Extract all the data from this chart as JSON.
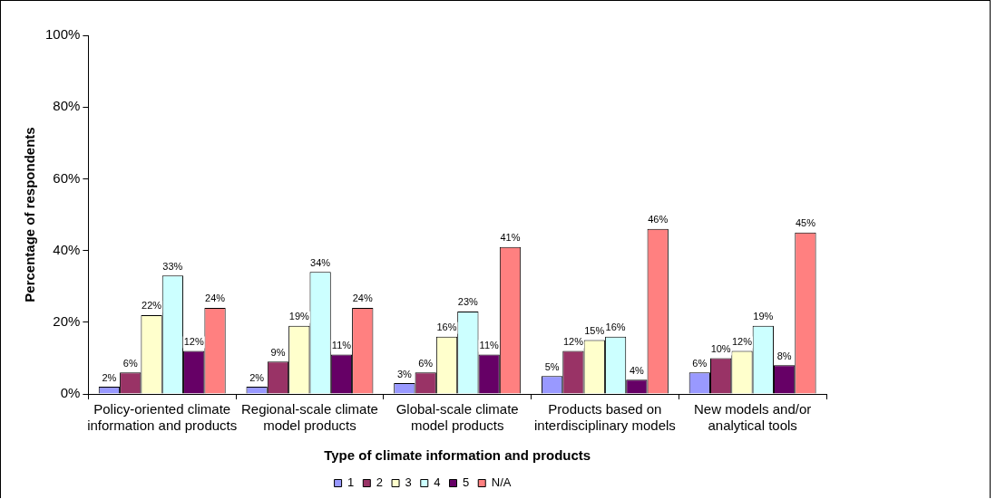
{
  "chart_data": {
    "type": "bar",
    "xlabel": "Type of climate information and products",
    "ylabel": "Percentage of respondents",
    "categories": [
      "Policy-oriented climate\ninformation and products",
      "Regional-scale climate\nmodel products",
      "Global-scale climate\nmodel products",
      "Products based on\ninterdisciplinary models",
      "New models and/or\nanalytical tools"
    ],
    "series": [
      {
        "name": "1",
        "color": "#9999ff",
        "values": [
          2,
          2,
          3,
          5,
          6
        ],
        "value_labels": [
          "2%",
          "2%",
          "3%",
          "5%",
          "6%"
        ]
      },
      {
        "name": "2",
        "color": "#993366",
        "values": [
          6,
          9,
          6,
          12,
          10
        ],
        "value_labels": [
          "6%",
          "9%",
          "6%",
          "12%",
          "10%"
        ]
      },
      {
        "name": "3",
        "color": "#ffffcc",
        "values": [
          22,
          19,
          16,
          15,
          12
        ],
        "value_labels": [
          "22%",
          "19%",
          "16%",
          "15%",
          "12%"
        ]
      },
      {
        "name": "4",
        "color": "#ccffff",
        "values": [
          33,
          34,
          23,
          16,
          19
        ],
        "value_labels": [
          "33%",
          "34%",
          "23%",
          "16%",
          "19%"
        ]
      },
      {
        "name": "5",
        "color": "#660066",
        "values": [
          12,
          11,
          11,
          4,
          8
        ],
        "value_labels": [
          "12%",
          "11%",
          "11%",
          "4%",
          "8%"
        ]
      },
      {
        "name": "N/A",
        "color": "#ff8080",
        "values": [
          24,
          24,
          41,
          46,
          45
        ],
        "value_labels": [
          "24%",
          "24%",
          "41%",
          "46%",
          "45%"
        ]
      }
    ],
    "ylim": [
      0,
      100
    ],
    "yticks": [
      {
        "value": 0,
        "label": "0%"
      },
      {
        "value": 20,
        "label": "20%"
      },
      {
        "value": 40,
        "label": "40%"
      },
      {
        "value": 60,
        "label": "60%"
      },
      {
        "value": 80,
        "label": "80%"
      },
      {
        "value": 100,
        "label": "100%"
      }
    ],
    "grid": false,
    "legend": "bottom"
  }
}
